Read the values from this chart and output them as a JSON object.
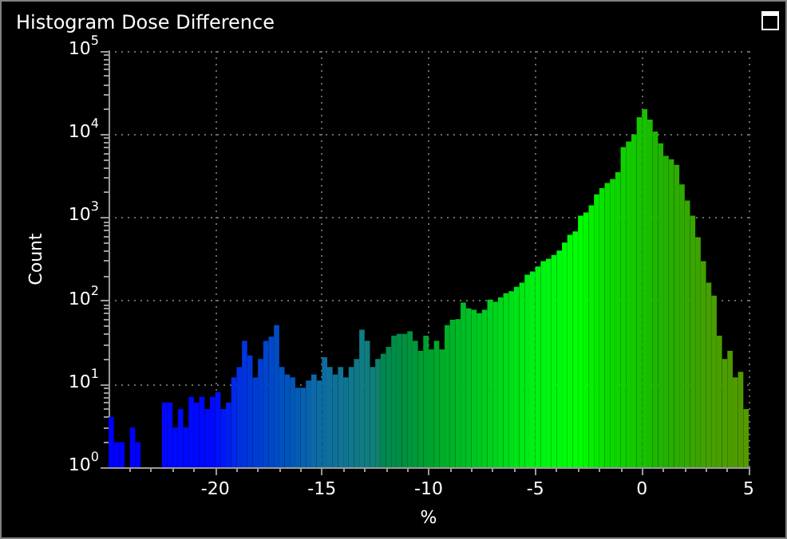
{
  "chart_data": {
    "type": "histogram",
    "title": "Histogram Dose Difference",
    "xlabel": "%",
    "ylabel": "Count",
    "bins": [
      -25,
      -24.75,
      -24.5,
      -24.25,
      -24,
      -23.75,
      -23.5,
      -23.25,
      -23,
      -22.75,
      -22.5,
      -22.25,
      -22,
      -21.75,
      -21.5,
      -21.25,
      -21,
      -20.75,
      -20.5,
      -20.25,
      -20,
      -19.75,
      -19.5,
      -19.25,
      -19,
      -18.75,
      -18.5,
      -18.25,
      -18,
      -17.75,
      -17.5,
      -17.25,
      -17,
      -16.75,
      -16.5,
      -16.25,
      -16,
      -15.75,
      -15.5,
      -15.25,
      -15,
      -14.75,
      -14.5,
      -14.25,
      -14,
      -13.75,
      -13.5,
      -13.25,
      -13,
      -12.75,
      -12.5,
      -12.25,
      -12,
      -11.75,
      -11.5,
      -11.25,
      -11,
      -10.75,
      -10.5,
      -10.25,
      -10,
      -9.75,
      -9.5,
      -9.25,
      -9,
      -8.75,
      -8.5,
      -8.25,
      -8,
      -7.75,
      -7.5,
      -7.25,
      -7,
      -6.75,
      -6.5,
      -6.25,
      -6,
      -5.75,
      -5.5,
      -5.25,
      -5,
      -4.75,
      -4.5,
      -4.25,
      -4,
      -3.75,
      -3.5,
      -3.25,
      -3,
      -2.75,
      -2.5,
      -2.25,
      -2,
      -1.75,
      -1.5,
      -1.25,
      -1,
      -0.75,
      -0.5,
      -0.25,
      0,
      0.25,
      0.5,
      0.75,
      1,
      1.25,
      1.5,
      1.75,
      2,
      2.25,
      2.5,
      2.75,
      3,
      3.25,
      3.5,
      3.75,
      4,
      4.25,
      4.5,
      4.75,
      5
    ],
    "values": [
      4,
      2,
      2,
      null,
      3,
      2,
      null,
      null,
      null,
      null,
      6,
      6,
      3,
      5,
      3,
      7,
      6,
      7,
      5,
      7,
      8,
      5,
      6,
      12,
      16,
      33,
      22,
      12,
      20,
      33,
      37,
      51,
      16,
      13,
      12,
      9,
      9,
      11,
      13,
      11,
      21,
      16,
      13,
      16,
      12,
      16,
      20,
      45,
      33,
      16,
      20,
      23,
      28,
      38,
      40,
      40,
      43,
      33,
      25,
      38,
      26,
      33,
      26,
      51,
      59,
      60,
      95,
      81,
      78,
      71,
      78,
      103,
      97,
      110,
      123,
      130,
      147,
      165,
      206,
      225,
      258,
      300,
      320,
      356,
      400,
      500,
      620,
      680,
      1050,
      1150,
      1400,
      1900,
      2250,
      2600,
      2900,
      3500,
      7000,
      8200,
      10000,
      16000,
      20000,
      15000,
      10800,
      7800,
      5500,
      5000,
      4300,
      2500,
      1600,
      1050,
      580,
      300,
      165,
      115,
      38,
      20,
      25,
      12,
      14,
      5
    ],
    "colors": [
      "#0000ff",
      "#0000ff",
      "#0000ff",
      "#0000ff",
      "#0000ff",
      "#0000ff",
      "#0000ff",
      "#0000ff",
      "#0000ff",
      "#0000ff",
      "#0008ff",
      "#0008ff",
      "#0008ff",
      "#0008ff",
      "#0008ff",
      "#0008ff",
      "#0008ff",
      "#0008ff",
      "#0008ff",
      "#0008ff",
      "#0010ff",
      "#0018f8",
      "#0020f0",
      "#0028e8",
      "#0030e0",
      "#0034dc",
      "#0038d8",
      "#003cd4",
      "#0040d0",
      "#0044cc",
      "#0048c8",
      "#004cc4",
      "#0050c0",
      "#0054bc",
      "#0058b8",
      "#045cb4",
      "#0860b0",
      "#0864ac",
      "#0c68a8",
      "#0c6ca4",
      "#0c6ca0",
      "#10709c",
      "#107098",
      "#107494",
      "#107490",
      "#10788c",
      "#107888",
      "#107c84",
      "#107c80",
      "#10807c",
      "#10806c",
      "#008850",
      "#008a4c",
      "#008c48",
      "#008e44",
      "#009040",
      "#00943c",
      "#009838",
      "#009c34",
      "#00a030",
      "#00a42c",
      "#00a82c",
      "#00ac2a",
      "#00b028",
      "#00b428",
      "#00b826",
      "#00bc24",
      "#00c024",
      "#00c422",
      "#00c820",
      "#00cc20",
      "#00d01e",
      "#00d41c",
      "#00d81c",
      "#00dc1a",
      "#00e018",
      "#00e418",
      "#00e816",
      "#00ec14",
      "#00f014",
      "#00f212",
      "#00f410",
      "#00f610",
      "#00f80e",
      "#00fa0c",
      "#00fc0a",
      "#00fd08",
      "#00fe04",
      "#00ff00",
      "#02f800",
      "#04f000",
      "#06e800",
      "#08e200",
      "#0adc00",
      "#0cd800",
      "#0ed400",
      "#10d000",
      "#12cc00",
      "#14c800",
      "#16c400",
      "#18c000",
      "#1abc00",
      "#1cb800",
      "#20b400",
      "#24b000",
      "#28ae00",
      "#2cac00",
      "#30aa00",
      "#34a800",
      "#38a600",
      "#3ca400",
      "#40a200",
      "#44a000",
      "#46a000",
      "#489e00",
      "#4a9e00",
      "#4c9c00",
      "#4e9c00",
      "#509a00",
      "#529a00"
    ],
    "xlim": [
      -25,
      5
    ],
    "xticks": [
      -20,
      -15,
      -10,
      -5,
      0,
      5
    ],
    "ylim": [
      1,
      100000
    ],
    "yticks": [
      {
        "value": 1,
        "label": "10$^{0}$"
      },
      {
        "value": 10,
        "label": "10$^{1}$"
      },
      {
        "value": 100,
        "label": "10$^{2}$"
      },
      {
        "value": 1000,
        "label": "10$^{3}$"
      },
      {
        "value": 10000,
        "label": "10$^{4}$"
      },
      {
        "value": 100000,
        "label": "10$^{5}$"
      }
    ],
    "log": "y",
    "grid": true
  }
}
